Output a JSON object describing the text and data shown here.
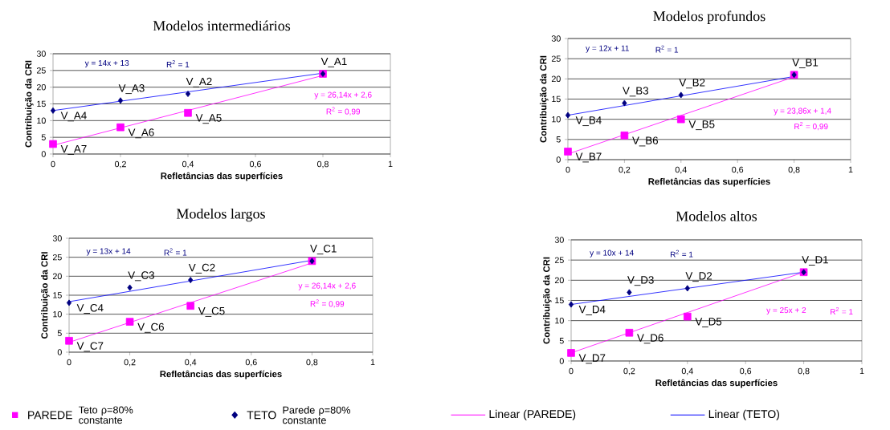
{
  "chart_data": [
    {
      "type": "scatter",
      "title": "Modelos intermediários",
      "xlabel": "Refletâncias das superfícies",
      "ylabel": "Contribuição da CRI",
      "xlim": [
        0,
        1
      ],
      "ylim": [
        0,
        30
      ],
      "xticks": [
        0,
        {
          "value": 0.2,
          "label": "0,2"
        },
        {
          "value": 0.4,
          "label": "0,4"
        },
        {
          "value": 0.6,
          "label": "0,6"
        },
        {
          "value": 0.8,
          "label": "0,8"
        },
        1
      ],
      "yticks": [
        0,
        5,
        10,
        15,
        20,
        25,
        30
      ],
      "grid": "y",
      "legend": "bottom",
      "series": [
        {
          "name": "PAREDE",
          "color": "#ff00ff",
          "marker": "square",
          "x": [
            0,
            0.2,
            0.4,
            0.8
          ],
          "values": [
            3,
            8,
            12.3,
            24
          ]
        },
        {
          "name": "TETO",
          "color": "#000080",
          "marker": "diamond",
          "x": [
            0,
            0.2,
            0.4,
            0.8
          ],
          "values": [
            13,
            16,
            18,
            24
          ]
        },
        {
          "name": "Linear (PAREDE)",
          "type": "line",
          "color": "#ff00ff",
          "marker": "none",
          "x": [
            0,
            0.8
          ],
          "values": [
            2.6,
            23.5
          ]
        },
        {
          "name": "Linear (TETO)",
          "type": "line",
          "color": "#0000ff",
          "marker": "none",
          "x": [
            0,
            0.8
          ],
          "values": [
            13,
            24.2
          ]
        }
      ],
      "annotations": [
        "Teto ρ=80% constante",
        "Parede ρ=80% constante",
        {
          "text": "V_A1",
          "x": 0.8,
          "y": 24
        },
        {
          "text": "V_A2",
          "x": 0.4,
          "y": 18
        },
        {
          "text": "V_A3",
          "x": 0.2,
          "y": 16
        },
        {
          "text": "V_A4",
          "x": 0,
          "y": 13
        },
        {
          "text": "V_A5",
          "x": 0.4,
          "y": 12.3
        },
        {
          "text": "V_A6",
          "x": 0.2,
          "y": 8
        },
        {
          "text": "V_A7",
          "x": 0,
          "y": 3
        },
        "y = 14x + 13",
        "R$^{2}$ = 1",
        "y = 26,14x + 2,6",
        "R$^{2}$ = 0,99"
      ]
    },
    {
      "type": "scatter",
      "title": "Modelos profundos",
      "xlabel": "Refletâncias das superfícies",
      "ylabel": "Contribuição da CRI",
      "xlim": [
        0,
        1
      ],
      "ylim": [
        0,
        30
      ],
      "xticks": [
        0,
        {
          "value": 0.2,
          "label": "0,2"
        },
        {
          "value": 0.4,
          "label": "0,4"
        },
        {
          "value": 0.6,
          "label": "0,6"
        },
        {
          "value": 0.8,
          "label": "0,8"
        },
        1
      ],
      "yticks": [
        0,
        5,
        10,
        15,
        20,
        25,
        30
      ],
      "grid": "y",
      "series": [
        {
          "color": "#ff00ff",
          "marker": "square",
          "x": [
            0,
            0.2,
            0.4,
            0.8
          ],
          "values": [
            2,
            6,
            10,
            21
          ]
        },
        {
          "color": "#000080",
          "marker": "diamond",
          "x": [
            0,
            0.2,
            0.4,
            0.8
          ],
          "values": [
            11,
            14,
            16,
            21
          ]
        },
        {
          "type": "line",
          "color": "#ff00ff",
          "marker": "none",
          "x": [
            0,
            0.8
          ],
          "values": [
            1.4,
            20.5
          ]
        },
        {
          "type": "line",
          "color": "#0000ff",
          "marker": "none",
          "x": [
            0,
            0.8
          ],
          "values": [
            11,
            20.6
          ]
        }
      ],
      "annotations": [
        {
          "text": "V_B1",
          "x": 0.8,
          "y": 21
        },
        {
          "text": "V_B2",
          "x": 0.4,
          "y": 16
        },
        {
          "text": "V_B3",
          "x": 0.2,
          "y": 14
        },
        {
          "text": "V_B4",
          "x": 0,
          "y": 11
        },
        {
          "text": "V_B5",
          "x": 0.4,
          "y": 10
        },
        {
          "text": "V_B6",
          "x": 0.2,
          "y": 6
        },
        {
          "text": "V_B7",
          "x": 0,
          "y": 2
        },
        "y = 12x + 11",
        "R$^{2}$ = 1",
        "y = 23,86x + 1,4",
        "R$^{2}$ = 0,99"
      ]
    },
    {
      "type": "scatter",
      "title": "Modelos largos",
      "xlabel": "Refletâncias das superfícies",
      "ylabel": "Contribuição da CRI",
      "xlim": [
        0,
        1
      ],
      "ylim": [
        0,
        30
      ],
      "xticks": [
        0,
        {
          "value": 0.2,
          "label": "0,2"
        },
        {
          "value": 0.4,
          "label": "0,4"
        },
        {
          "value": 0.6,
          "label": "0,6"
        },
        {
          "value": 0.8,
          "label": "0,8"
        },
        1
      ],
      "yticks": [
        0,
        5,
        10,
        15,
        20,
        25,
        30
      ],
      "grid": "y",
      "series": [
        {
          "color": "#ff00ff",
          "marker": "square",
          "x": [
            0,
            0.2,
            0.4,
            0.8
          ],
          "values": [
            3,
            8,
            12.2,
            24
          ]
        },
        {
          "color": "#000080",
          "marker": "diamond",
          "x": [
            0,
            0.2,
            0.4,
            0.8
          ],
          "values": [
            13,
            17,
            19,
            24
          ]
        },
        {
          "type": "line",
          "color": "#ff00ff",
          "marker": "none",
          "x": [
            0,
            0.8
          ],
          "values": [
            2.6,
            23.5
          ]
        },
        {
          "type": "line",
          "color": "#0000ff",
          "marker": "none",
          "x": [
            0,
            0.8
          ],
          "values": [
            13.3,
            24.2
          ]
        }
      ],
      "annotations": [
        {
          "text": "V_C1",
          "x": 0.8,
          "y": 24
        },
        {
          "text": "V_C2",
          "x": 0.4,
          "y": 19
        },
        {
          "text": "V_C3",
          "x": 0.2,
          "y": 17
        },
        {
          "text": "V_C4",
          "x": 0,
          "y": 13
        },
        {
          "text": "V_C5",
          "x": 0.4,
          "y": 12.2
        },
        {
          "text": "V_C6",
          "x": 0.2,
          "y": 8
        },
        {
          "text": "V_C7",
          "x": 0,
          "y": 3
        },
        "y = 13x + 14",
        "R$^{2}$ = 1",
        "y = 26,14x + 2,6",
        "R$^{2}$ = 0,99"
      ]
    },
    {
      "type": "scatter",
      "title": "Modelos altos",
      "xlabel": "Refletâncias das superfícies",
      "ylabel": "Contribuição da CRI",
      "xlim": [
        0,
        1
      ],
      "ylim": [
        0,
        30
      ],
      "xticks": [
        0,
        {
          "value": 0.2,
          "label": "0,2"
        },
        {
          "value": 0.4,
          "label": "0,4"
        },
        {
          "value": 0.6,
          "label": "0,6"
        },
        {
          "value": 0.8,
          "label": "0,8"
        },
        1
      ],
      "yticks": [
        0,
        5,
        10,
        15,
        20,
        25,
        30
      ],
      "grid": "y",
      "series": [
        {
          "color": "#ff00ff",
          "marker": "square",
          "x": [
            0,
            0.2,
            0.4,
            0.8
          ],
          "values": [
            2,
            7,
            11,
            22
          ]
        },
        {
          "color": "#000080",
          "marker": "diamond",
          "x": [
            0,
            0.2,
            0.4,
            0.8
          ],
          "values": [
            14,
            17,
            18,
            22
          ]
        },
        {
          "type": "line",
          "color": "#ff00ff",
          "marker": "none",
          "x": [
            0,
            0.8
          ],
          "values": [
            2,
            22
          ]
        },
        {
          "type": "line",
          "color": "#0000ff",
          "marker": "none",
          "x": [
            0,
            0.8
          ],
          "values": [
            14,
            22
          ]
        }
      ],
      "annotations": [
        {
          "text": "V_D1",
          "x": 0.8,
          "y": 22
        },
        {
          "text": "V_D2",
          "x": 0.4,
          "y": 18
        },
        {
          "text": "V_D3",
          "x": 0.2,
          "y": 17
        },
        {
          "text": "V_D4",
          "x": 0,
          "y": 14
        },
        {
          "text": "V_D5",
          "x": 0.4,
          "y": 11
        },
        {
          "text": "V_D6",
          "x": 0.2,
          "y": 7
        },
        {
          "text": "V_D7",
          "x": 0,
          "y": 2
        },
        "y = 10x + 14",
        "R$^{2}$ = 1",
        "y = 25x + 2",
        "R$^{2}$ = 1"
      ]
    }
  ]
}
